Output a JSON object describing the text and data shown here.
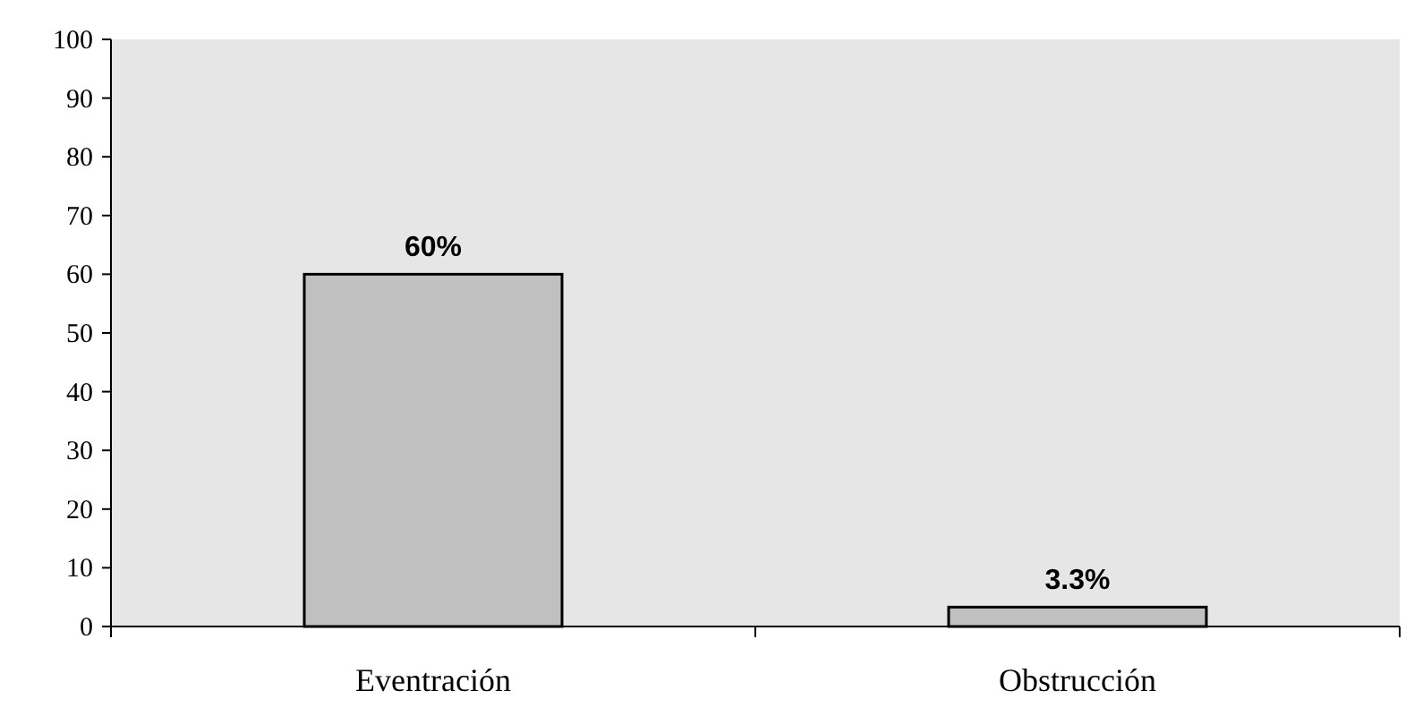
{
  "chart_data": {
    "type": "bar",
    "categories": [
      "Eventración",
      "Obstrucción"
    ],
    "values": [
      60,
      3.3
    ],
    "value_labels": [
      "60%",
      "3.3%"
    ],
    "color": "#c0c0c0",
    "ylim": [
      0,
      100
    ],
    "yticks": [
      0,
      10,
      20,
      30,
      40,
      50,
      60,
      70,
      80,
      90,
      100
    ],
    "grid": false
  }
}
